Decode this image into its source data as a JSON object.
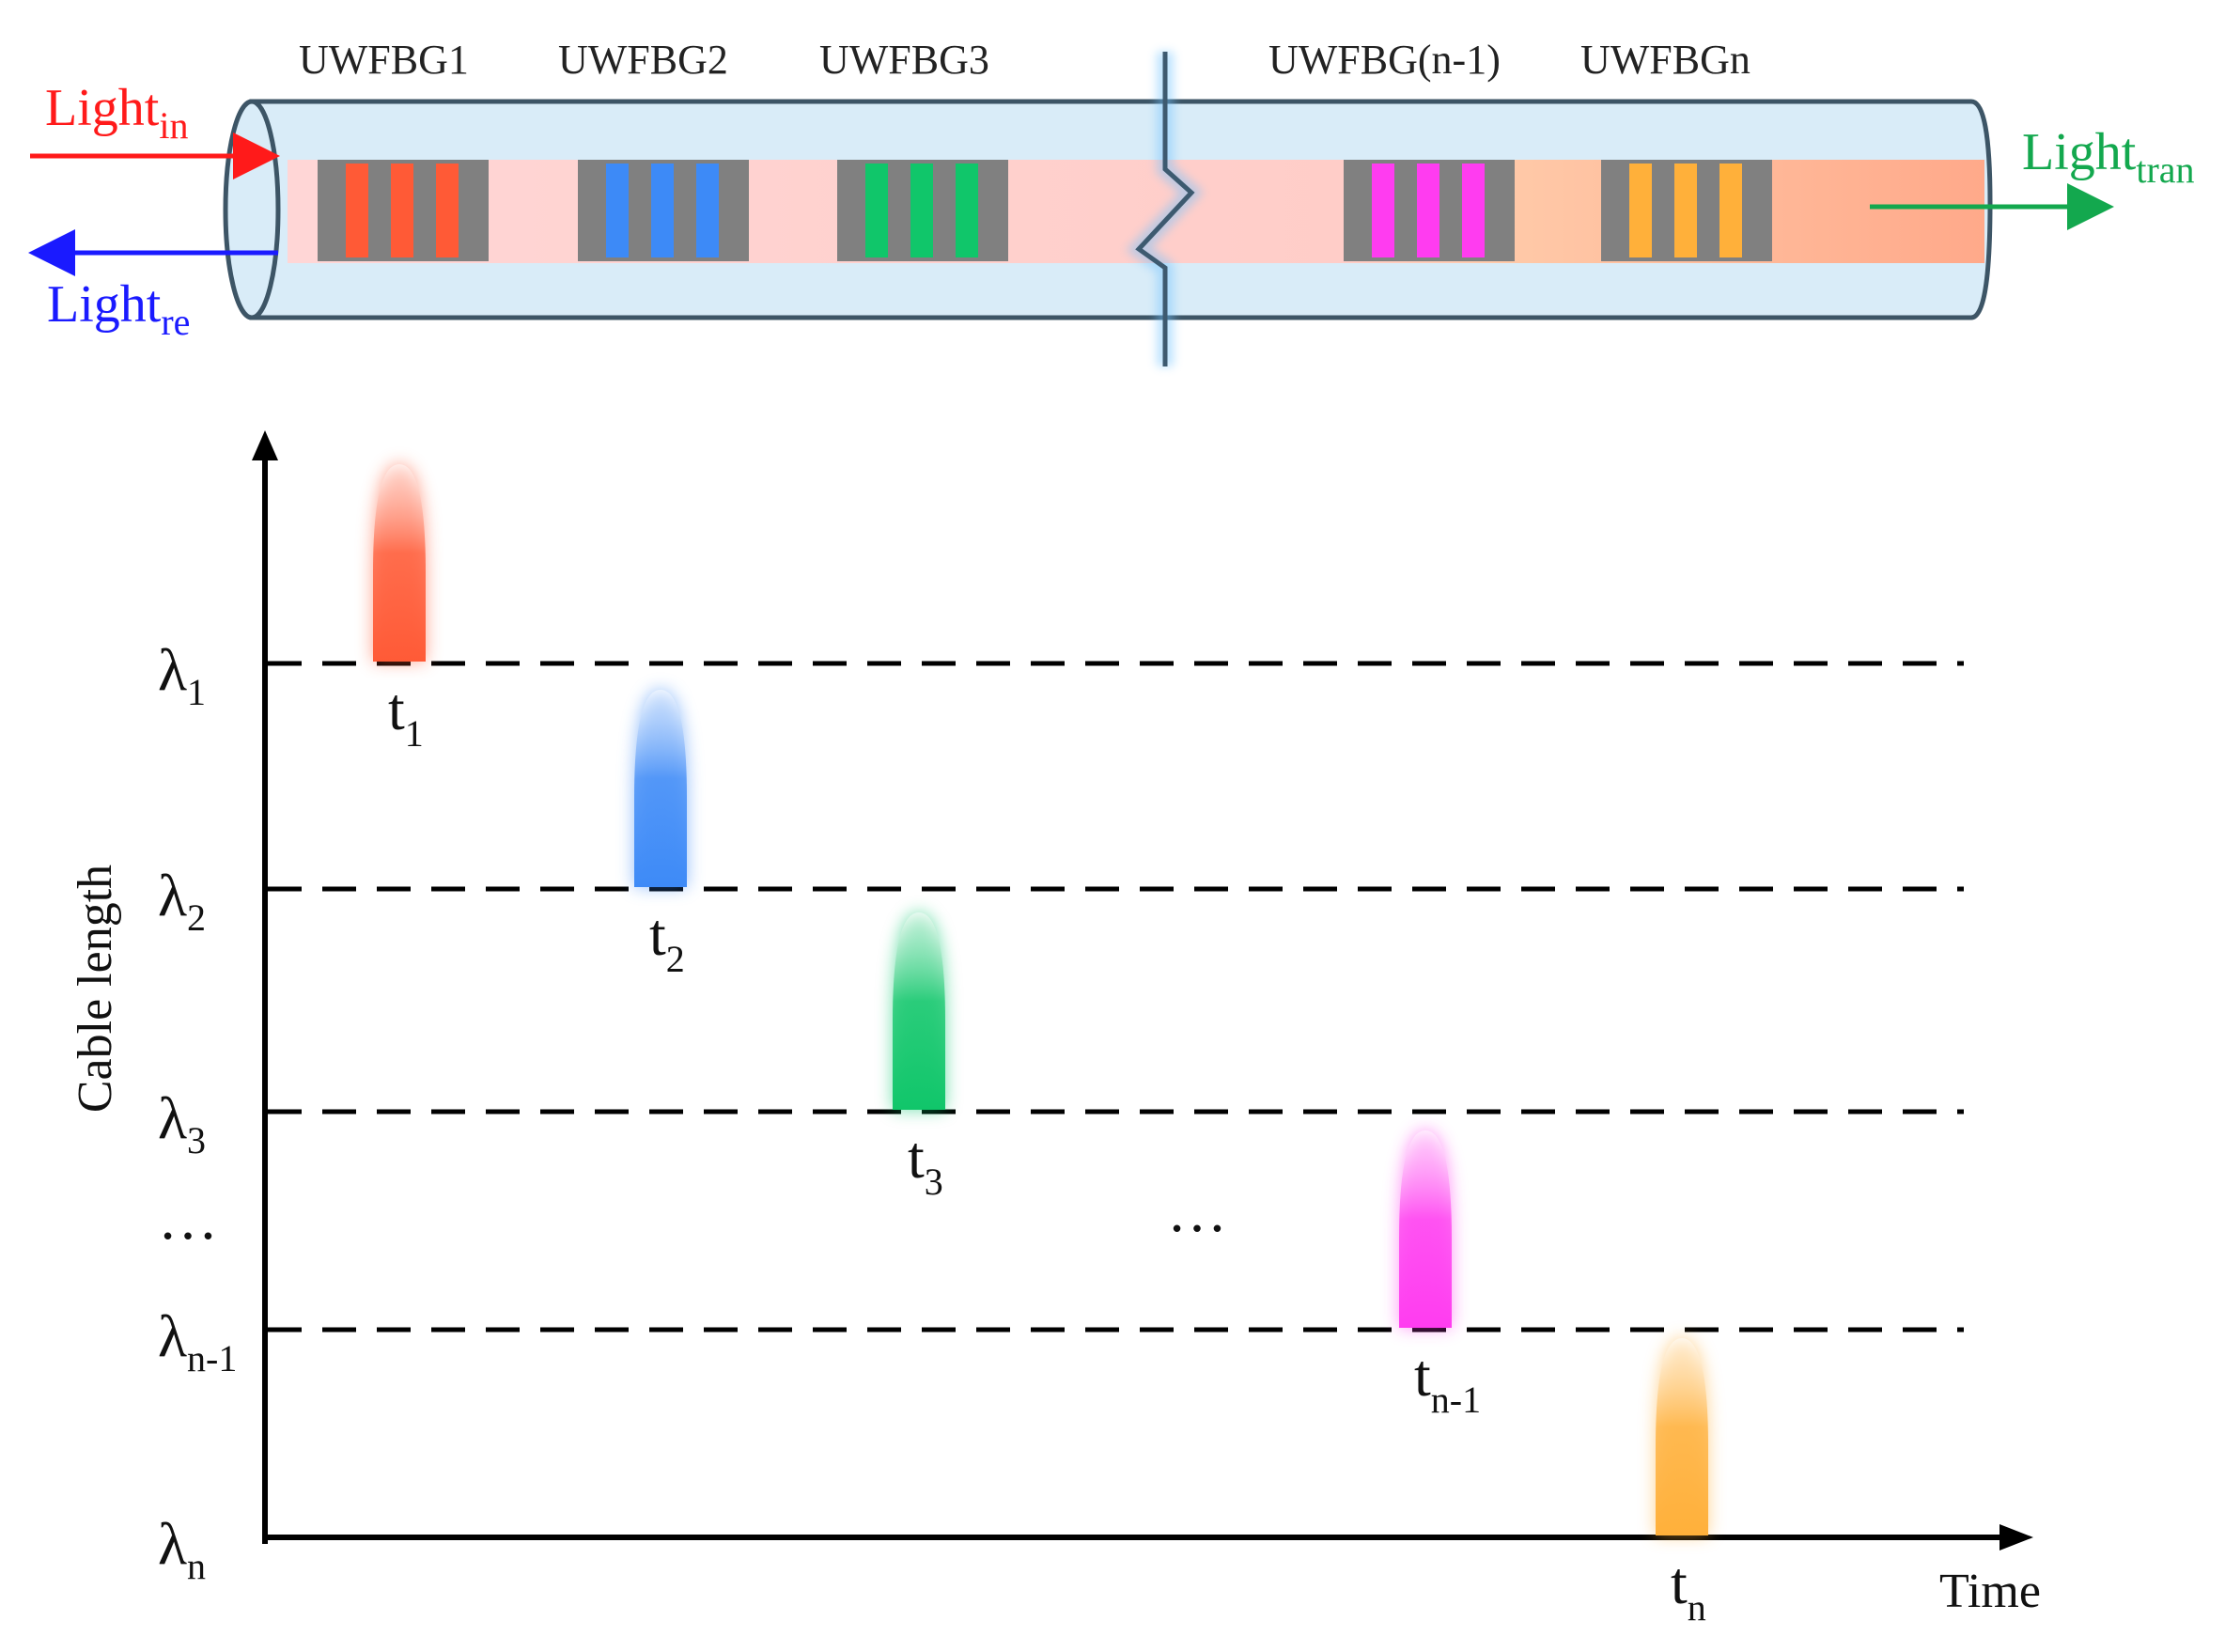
{
  "fiber": {
    "gratings": [
      {
        "label": "UWFBG1",
        "color": "#ff5a36"
      },
      {
        "label": "UWFBG2",
        "color": "#3d8af7"
      },
      {
        "label": "UWFBG3",
        "color": "#10c66a"
      },
      {
        "label": "UWFBG(n-1)",
        "color": "#ff3cf0"
      },
      {
        "label": "UWFBGn",
        "color": "#ffb03a"
      }
    ],
    "light_in": {
      "base": "Light",
      "sub": "in",
      "color": "#ff1a1a"
    },
    "light_re": {
      "base": "Light",
      "sub": "re",
      "color": "#1a1aff"
    },
    "light_tran": {
      "base": "Light",
      "sub": "tran",
      "color": "#13a84e"
    }
  },
  "chart_data": {
    "type": "diagram-timing",
    "xlabel": "Time",
    "ylabel": "Cable length",
    "y_levels": [
      {
        "sym": "λ",
        "sub": "1"
      },
      {
        "sym": "λ",
        "sub": "2"
      },
      {
        "sym": "λ",
        "sub": "3"
      },
      {
        "sym": "…",
        "sub": ""
      },
      {
        "sym": "λ",
        "sub": "n-1"
      },
      {
        "sym": "λ",
        "sub": "n"
      }
    ],
    "pulses": [
      {
        "t": "t",
        "sub": "1",
        "color": "#ff5a36"
      },
      {
        "t": "t",
        "sub": "2",
        "color": "#3d8af7"
      },
      {
        "t": "t",
        "sub": "3",
        "color": "#10c66a"
      },
      {
        "t": "t",
        "sub": "n-1",
        "color": "#ff3cf0"
      },
      {
        "t": "t",
        "sub": "n",
        "color": "#ffb03a"
      }
    ],
    "mid_ellipsis": "…"
  }
}
